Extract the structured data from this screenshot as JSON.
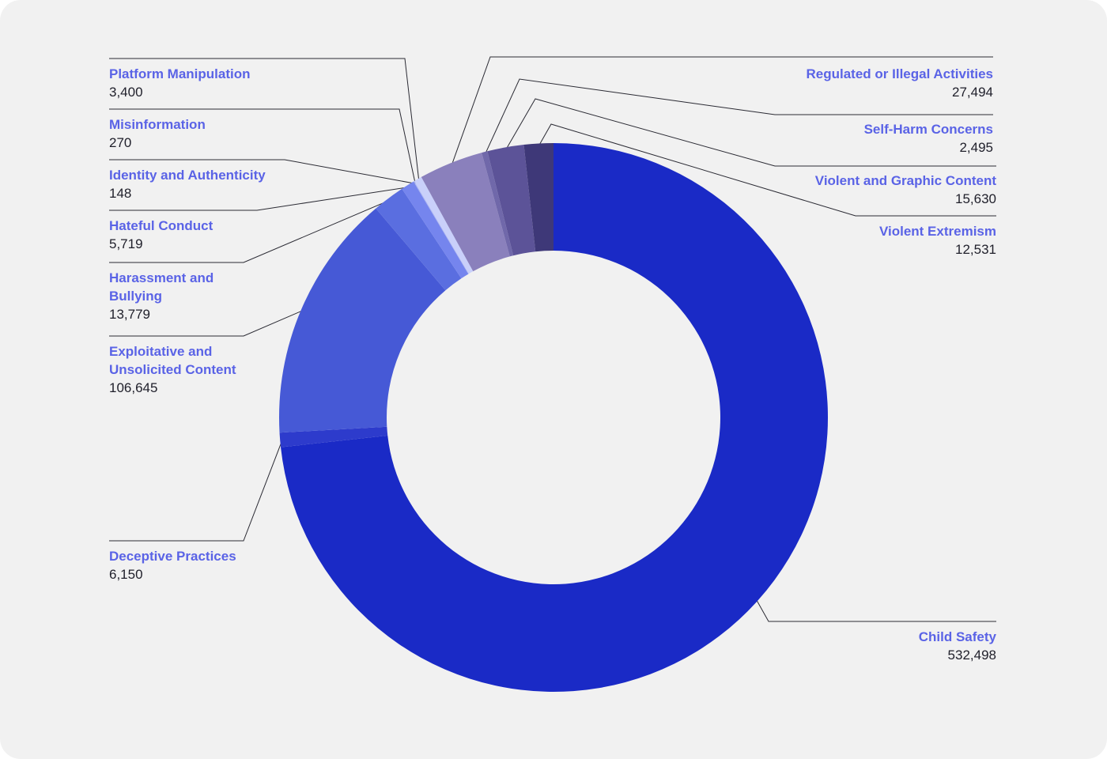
{
  "chart_data": {
    "type": "pie",
    "title": "",
    "variant": "donut",
    "series": [
      {
        "name": "Child Safety",
        "value": 532498,
        "display": "532,498",
        "color": "#1a2ac6"
      },
      {
        "name": "Deceptive Practices",
        "value": 6150,
        "display": "6,150",
        "color": "#2d3bcc"
      },
      {
        "name": "Exploitative and Unsolicited Content",
        "value": 106645,
        "display": "106,645",
        "color": "#4659d6"
      },
      {
        "name": "Harassment and Bullying",
        "value": 13779,
        "display": "13,779",
        "color": "#5a6ee0"
      },
      {
        "name": "Hateful Conduct",
        "value": 5719,
        "display": "5,719",
        "color": "#7585ee"
      },
      {
        "name": "Identity and Authenticity",
        "value": 148,
        "display": "148",
        "color": "#8e9bf0"
      },
      {
        "name": "Misinformation",
        "value": 270,
        "display": "270",
        "color": "#aeb8f6"
      },
      {
        "name": "Platform Manipulation",
        "value": 3400,
        "display": "3,400",
        "color": "#c9d0fa"
      },
      {
        "name": "Regulated or Illegal Activities",
        "value": 27494,
        "display": "27,494",
        "color": "#8a80bc"
      },
      {
        "name": "Self-Harm Concerns",
        "value": 2495,
        "display": "2,495",
        "color": "#7068aa"
      },
      {
        "name": "Violent and Graphic Content",
        "value": 15630,
        "display": "15,630",
        "color": "#5c5398"
      },
      {
        "name": "Violent Extremism",
        "value": 12531,
        "display": "12,531",
        "color": "#3e3878"
      }
    ]
  }
}
